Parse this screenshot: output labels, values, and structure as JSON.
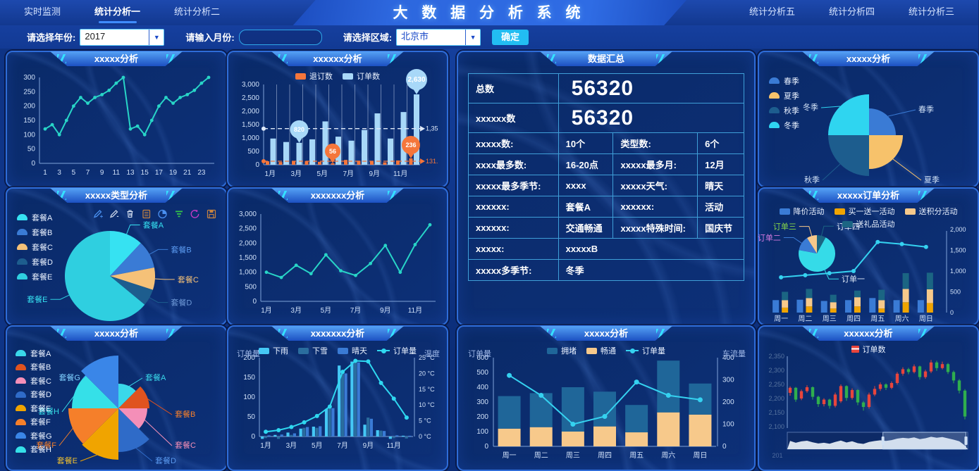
{
  "app": {
    "title": "大 数 据 分 析 系 统"
  },
  "nav": {
    "left": [
      {
        "label": "实时监测",
        "active": false
      },
      {
        "label": "统计分析一",
        "active": true
      },
      {
        "label": "统计分析二",
        "active": false
      }
    ],
    "right": [
      {
        "label": "统计分析五",
        "active": false
      },
      {
        "label": "统计分析四",
        "active": false
      },
      {
        "label": "统计分析三",
        "active": false
      }
    ]
  },
  "filters": {
    "year_label": "请选择年份:",
    "year_value": "2017",
    "month_label": "请输入月份:",
    "month_value": "",
    "region_label": "请选择区域:",
    "region_value": "北京市",
    "submit_label": "确定"
  },
  "summary_table": {
    "title": "数据汇总",
    "rows": [
      {
        "kind": "big",
        "label": "总数",
        "value": "56320",
        "value_class": "green"
      },
      {
        "kind": "big",
        "label": "xxxxxx数",
        "value": "56320",
        "value_class": "redv"
      },
      {
        "kind": "quad",
        "cells": [
          "xxxxx数:",
          "10个",
          "类型数:",
          "6个"
        ]
      },
      {
        "kind": "quad",
        "cells": [
          "xxxx最多数:",
          "16-20点",
          "xxxxx最多月:",
          "12月"
        ]
      },
      {
        "kind": "quad",
        "cells": [
          "xxxxx最多季节:",
          "xxxx",
          "xxxxx天气:",
          "晴天"
        ]
      },
      {
        "kind": "quad",
        "cells": [
          "xxxxxx:",
          "套餐A",
          "xxxxxx:",
          "活动"
        ]
      },
      {
        "kind": "quad",
        "cells": [
          "xxxxxx:",
          "交通畅通",
          "xxxxx特殊时间:",
          "国庆节"
        ]
      },
      {
        "kind": "span",
        "label": "xxxxx:",
        "value": "xxxxxB",
        "value_class": "redv"
      },
      {
        "kind": "span",
        "label": "xxxxx多季节:",
        "value": "冬季",
        "value_class": "redv"
      }
    ]
  },
  "chart_data": [
    {
      "id": "p1",
      "type": "line",
      "title": "xxxxx分析",
      "color": "#28d5c7",
      "x_labels": [
        "1",
        "3",
        "5",
        "7",
        "9",
        "11",
        "13",
        "15",
        "17",
        "19",
        "21",
        "23"
      ],
      "label_every": 2,
      "values": [
        120,
        135,
        100,
        150,
        200,
        230,
        210,
        230,
        240,
        255,
        280,
        300,
        120,
        130,
        100,
        150,
        200,
        230,
        210,
        230,
        240,
        255,
        280,
        300
      ],
      "ylim": [
        0,
        300
      ],
      "ytick_step": 50
    },
    {
      "id": "p2",
      "type": "grouped-bar",
      "title": "xxxxxx分析",
      "categories": [
        "1月",
        "2月",
        "3月",
        "4月",
        "5月",
        "6月",
        "7月",
        "8月",
        "9月",
        "10月",
        "11月",
        "12月"
      ],
      "x_label_every": 2,
      "legend": [
        {
          "label": "退订数",
          "color": "#f5763b"
        },
        {
          "label": "订单数",
          "color": "#a8d8f8"
        }
      ],
      "series": [
        {
          "name": "退订数",
          "color": "#f5763b",
          "values": [
            130,
            100,
            120,
            140,
            110,
            56,
            180,
            150,
            120,
            90,
            160,
            236
          ]
        },
        {
          "name": "订单数",
          "color": "#a8d8f8",
          "values": [
            980,
            850,
            820,
            950,
            1620,
            1050,
            900,
            1300,
            1920,
            980,
            1970,
            2630
          ]
        }
      ],
      "ylim": [
        0,
        3000
      ],
      "ytick_step": 500,
      "balloons": [
        {
          "text": "820",
          "color": "#a8d8f8",
          "series": 1,
          "index": 2,
          "y": 820
        },
        {
          "text": "56",
          "color": "#f5763b",
          "series": 0,
          "index": 5,
          "y": 56
        },
        {
          "text": "236",
          "color": "#f5763b",
          "series": 0,
          "index": 11,
          "y": 236
        },
        {
          "text": "2,630",
          "color": "#a8d8f8",
          "series": 1,
          "index": 11,
          "y": 2630
        }
      ],
      "marklines": [
        {
          "value": 1350,
          "label": "1,35",
          "color": "#dfe9f8"
        },
        {
          "value": 131,
          "label": "131.",
          "color": "#f5763b"
        }
      ]
    },
    {
      "id": "p4",
      "type": "quad-pie",
      "title": "xxxxx分析",
      "legend": [
        {
          "label": "春季",
          "color": "#3a7bd5"
        },
        {
          "label": "夏季",
          "color": "#f7c26b"
        },
        {
          "label": "秋季",
          "color": "#1d5d8e"
        },
        {
          "label": "冬季",
          "color": "#2fd5f0"
        }
      ],
      "slices": [
        {
          "name": "冬季",
          "quadrant": "TL",
          "radius": 58,
          "color": "#2fd5f0"
        },
        {
          "name": "春季",
          "quadrant": "TR",
          "radius": 38,
          "color": "#3a7bd5"
        },
        {
          "name": "夏季",
          "quadrant": "BR",
          "radius": 48,
          "color": "#f7c26b"
        },
        {
          "name": "秋季",
          "quadrant": "BL",
          "radius": 58,
          "color": "#1d5d8e"
        }
      ]
    },
    {
      "id": "p5",
      "type": "pie",
      "title": "xxxxx类型分析",
      "legend": [
        {
          "label": "套餐A",
          "color": "#36e2f2"
        },
        {
          "label": "套餐B",
          "color": "#3a7bd5"
        },
        {
          "label": "套餐C",
          "color": "#f5c178"
        },
        {
          "label": "套餐D",
          "color": "#1d5d8e"
        },
        {
          "label": "套餐E",
          "color": "#2fcfe0"
        }
      ],
      "toolbox": [
        "edit-add-icon",
        "edit-remove-icon",
        "clear-icon",
        "data-view-icon",
        "pie-switch-icon",
        "filter-icon",
        "refresh-icon",
        "save-icon"
      ],
      "slices": [
        {
          "name": "套餐A",
          "value": 12,
          "color": "#36e2f2",
          "label_color": "#36e2f2"
        },
        {
          "name": "套餐B",
          "value": 10,
          "color": "#3a7bd5",
          "label_color": "#5b9af0"
        },
        {
          "name": "套餐C",
          "value": 8,
          "color": "#f5c178",
          "label_color": "#f5c178"
        },
        {
          "name": "套餐D",
          "value": 6,
          "color": "#1d5d8e",
          "label_color": "#6f9ad8"
        },
        {
          "name": "套餐E",
          "value": 64,
          "color": "#2fcfe0",
          "label_color": "#36e2f2"
        }
      ]
    },
    {
      "id": "p6",
      "type": "line",
      "title": "xxxxxxx分析",
      "color": "#28d5c7",
      "x_labels": [
        "1月",
        "3月",
        "5月",
        "7月",
        "9月",
        "11月"
      ],
      "label_every": 2,
      "values": [
        1000,
        820,
        1240,
        950,
        1600,
        1050,
        890,
        1300,
        1920,
        1000,
        1950,
        2630
      ],
      "ylim": [
        0,
        3000
      ],
      "ytick_step": 500
    },
    {
      "id": "p7",
      "type": "orders-combo",
      "title": "xxxxx订单分析",
      "legend_row1": [
        {
          "label": "降价活动",
          "color": "#3a7bd5"
        },
        {
          "label": "买一送一活动",
          "color": "#f0a400"
        },
        {
          "label": "送积分活动",
          "color": "#f7c98b"
        }
      ],
      "legend_row2": [
        {
          "label": "送礼品活动",
          "color": "#1b6583"
        }
      ],
      "categories": [
        "周一",
        "周二",
        "周三",
        "周四",
        "周五",
        "周六",
        "周日"
      ],
      "bar_blue": {
        "name": "降价活动",
        "color": "#3a7bd5",
        "values": [
          300,
          310,
          280,
          300,
          350,
          300,
          300
        ]
      },
      "stack": [
        {
          "name": "买一送一活动",
          "color": "#f0a400",
          "values": [
            120,
            150,
            100,
            150,
            100,
            250,
            230
          ]
        },
        {
          "name": "送积分活动",
          "color": "#f7c98b",
          "values": [
            180,
            200,
            150,
            220,
            200,
            320,
            330
          ]
        },
        {
          "name": "送礼品活动",
          "color": "#1b6583",
          "values": [
            200,
            220,
            180,
            160,
            250,
            380,
            400
          ]
        }
      ],
      "line": {
        "color": "#35d2f0",
        "values": [
          850,
          900,
          950,
          1000,
          1700,
          1650,
          1580
        ]
      },
      "pie": {
        "slices": [
          {
            "name": "订单四",
            "value": 8,
            "color": "#1b6583",
            "label_color": "#e8f0fb"
          },
          {
            "name": "订单一",
            "value": 70,
            "color": "#35dbe8",
            "label_color": "#dfe9f8"
          },
          {
            "name": "订单二",
            "value": 13,
            "color": "#3a7bd5",
            "label_color": "#d67ae0"
          },
          {
            "name": "订单三",
            "value": 9,
            "color": "#f7c98b",
            "label_color": "#86d84a"
          }
        ]
      },
      "ylim_right": [
        0,
        2000
      ],
      "ytick_step": 500
    },
    {
      "id": "p8",
      "type": "rose",
      "title": "xxxxx分析",
      "legend": [
        {
          "label": "套餐A",
          "color": "#3ad8ea"
        },
        {
          "label": "套餐B",
          "color": "#e0531f"
        },
        {
          "label": "套餐C",
          "color": "#f48fb8"
        },
        {
          "label": "套餐D",
          "color": "#2f6bc8"
        },
        {
          "label": "套餐E",
          "color": "#f0a400"
        },
        {
          "label": "套餐F",
          "color": "#f57f2a"
        },
        {
          "label": "套餐G",
          "color": "#3a86e8"
        },
        {
          "label": "套餐H",
          "color": "#35e0e8"
        }
      ],
      "slices": [
        {
          "name": "套餐A",
          "radius": 35,
          "color": "#3ad8ea",
          "label_color": "#3ad8ea"
        },
        {
          "name": "套餐B",
          "radius": 44,
          "color": "#e0531f",
          "label_color": "#f57f2a"
        },
        {
          "name": "套餐C",
          "radius": 41,
          "color": "#f48fb8",
          "label_color": "#f48fb8"
        },
        {
          "name": "套餐D",
          "radius": 62,
          "color": "#2f6bc8",
          "label_color": "#5b9af0"
        },
        {
          "name": "套餐E",
          "radius": 73,
          "color": "#f0a400",
          "label_color": "#f0c030"
        },
        {
          "name": "套餐F",
          "radius": 71,
          "color": "#f57f2a",
          "label_color": "#f57f2a"
        },
        {
          "name": "套餐H",
          "radius": 66,
          "color": "#35e0e8",
          "label_color": "#35e0e8"
        },
        {
          "name": "套餐G",
          "radius": 75,
          "color": "#3a86e8",
          "label_color": "#7fd0ff"
        }
      ]
    },
    {
      "id": "p9",
      "type": "weather-combo",
      "title": "xxxxxxx分析",
      "legend": [
        {
          "label": "下雨",
          "color": "#45c8f5"
        },
        {
          "label": "下雪",
          "color": "#2a6d9e"
        },
        {
          "label": "晴天",
          "color": "#3a7bd5"
        },
        {
          "label": "订单量",
          "color": "#2fd8f0",
          "swatch": "line"
        }
      ],
      "axis_left": "订单量",
      "axis_right": "温度",
      "temp_unit": "°C",
      "categories": [
        "1月",
        "2月",
        "3月",
        "4月",
        "5月",
        "6月",
        "7月",
        "8月",
        "9月",
        "10月",
        "11月",
        "12月"
      ],
      "x_label_every": 2,
      "series": [
        {
          "name": "下雨",
          "color": "#45c8f5",
          "values": [
            -6,
            4,
            10,
            20,
            25,
            70,
            180,
            190,
            30,
            16,
            -6,
            2
          ]
        },
        {
          "name": "下雪",
          "color": "#2a6d9e",
          "values": [
            -4,
            -6,
            4,
            22,
            22,
            72,
            165,
            190,
            48,
            15,
            -4,
            -5
          ]
        },
        {
          "name": "晴天",
          "color": "#3a7bd5",
          "values": [
            3,
            5,
            8,
            24,
            26,
            72,
            160,
            188,
            45,
            14,
            3,
            2
          ]
        }
      ],
      "temps": [
        1.5,
        2,
        3,
        4.5,
        6.5,
        9.5,
        20.5,
        24,
        23.8,
        17,
        12,
        6
      ],
      "ylim_left": [
        0,
        200
      ],
      "ytick_left_step": 50,
      "ylim_right": [
        0,
        25
      ],
      "ytick_right_step": 5
    },
    {
      "id": "p10",
      "type": "traffic-combo",
      "title": "xxxxx分析",
      "legend": [
        {
          "label": "拥堵",
          "color": "#1f6699"
        },
        {
          "label": "畅通",
          "color": "#f7c98b"
        },
        {
          "label": "订单量",
          "color": "#35d2f0",
          "swatch": "line"
        }
      ],
      "axis_left": "订单量",
      "axis_right": "车流量",
      "categories": [
        "周一",
        "周二",
        "周三",
        "周四",
        "周五",
        "周六",
        "周日"
      ],
      "congested": {
        "name": "拥堵",
        "color": "#1f6699",
        "values": [
          220,
          230,
          300,
          235,
          185,
          350,
          210
        ]
      },
      "smooth": {
        "name": "畅通",
        "color": "#f7c98b",
        "values": [
          120,
          130,
          100,
          135,
          95,
          230,
          215
        ]
      },
      "line": {
        "name": "订单量",
        "color": "#35d2f0",
        "values": [
          320,
          230,
          100,
          135,
          290,
          230,
          210
        ]
      },
      "ylim_left": [
        0,
        600
      ],
      "ytick_left_step": 100,
      "ylim_right": [
        0,
        400
      ],
      "ytick_right_step": 100
    },
    {
      "id": "p11",
      "type": "candlestick",
      "title": "xxxxxx分析",
      "legend": [
        {
          "label": "订单数",
          "swatch": "candle",
          "color": "#e8453c"
        }
      ],
      "up_color": "#e8453c",
      "down_color": "#2fae4e",
      "ylim": [
        2100,
        2350
      ],
      "ytick_step": 50,
      "x_label_partial": "201",
      "candles": [
        [
          2220,
          2238,
          2210,
          2243
        ],
        [
          2238,
          2196,
          2188,
          2241
        ],
        [
          2200,
          2226,
          2194,
          2232
        ],
        [
          2226,
          2240,
          2220,
          2247
        ],
        [
          2240,
          2206,
          2196,
          2243
        ],
        [
          2206,
          2180,
          2170,
          2210
        ],
        [
          2180,
          2196,
          2172,
          2201
        ],
        [
          2196,
          2174,
          2164,
          2199
        ],
        [
          2174,
          2214,
          2168,
          2221
        ],
        [
          2190,
          2244,
          2184,
          2250
        ],
        [
          2244,
          2202,
          2192,
          2247
        ],
        [
          2202,
          2230,
          2196,
          2236
        ],
        [
          2230,
          2186,
          2176,
          2233
        ],
        [
          2186,
          2170,
          2157,
          2191
        ],
        [
          2170,
          2214,
          2164,
          2221
        ],
        [
          2214,
          2234,
          2208,
          2244
        ],
        [
          2234,
          2250,
          2227,
          2257
        ],
        [
          2250,
          2238,
          2230,
          2254
        ],
        [
          2238,
          2255,
          2233,
          2261
        ],
        [
          2255,
          2288,
          2249,
          2294
        ],
        [
          2288,
          2304,
          2281,
          2311
        ],
        [
          2304,
          2294,
          2286,
          2309
        ],
        [
          2294,
          2314,
          2289,
          2321
        ],
        [
          2314,
          2276,
          2267,
          2317
        ],
        [
          2276,
          2296,
          2270,
          2302
        ],
        [
          2296,
          2328,
          2290,
          2337
        ],
        [
          2328,
          2308,
          2298,
          2334
        ],
        [
          2308,
          2322,
          2303,
          2331
        ],
        [
          2322,
          2294,
          2287,
          2326
        ],
        [
          2294,
          2264,
          2254,
          2299
        ],
        [
          2264,
          2228,
          2218,
          2269
        ],
        [
          2228,
          2136,
          2126,
          2233
        ]
      ]
    }
  ]
}
